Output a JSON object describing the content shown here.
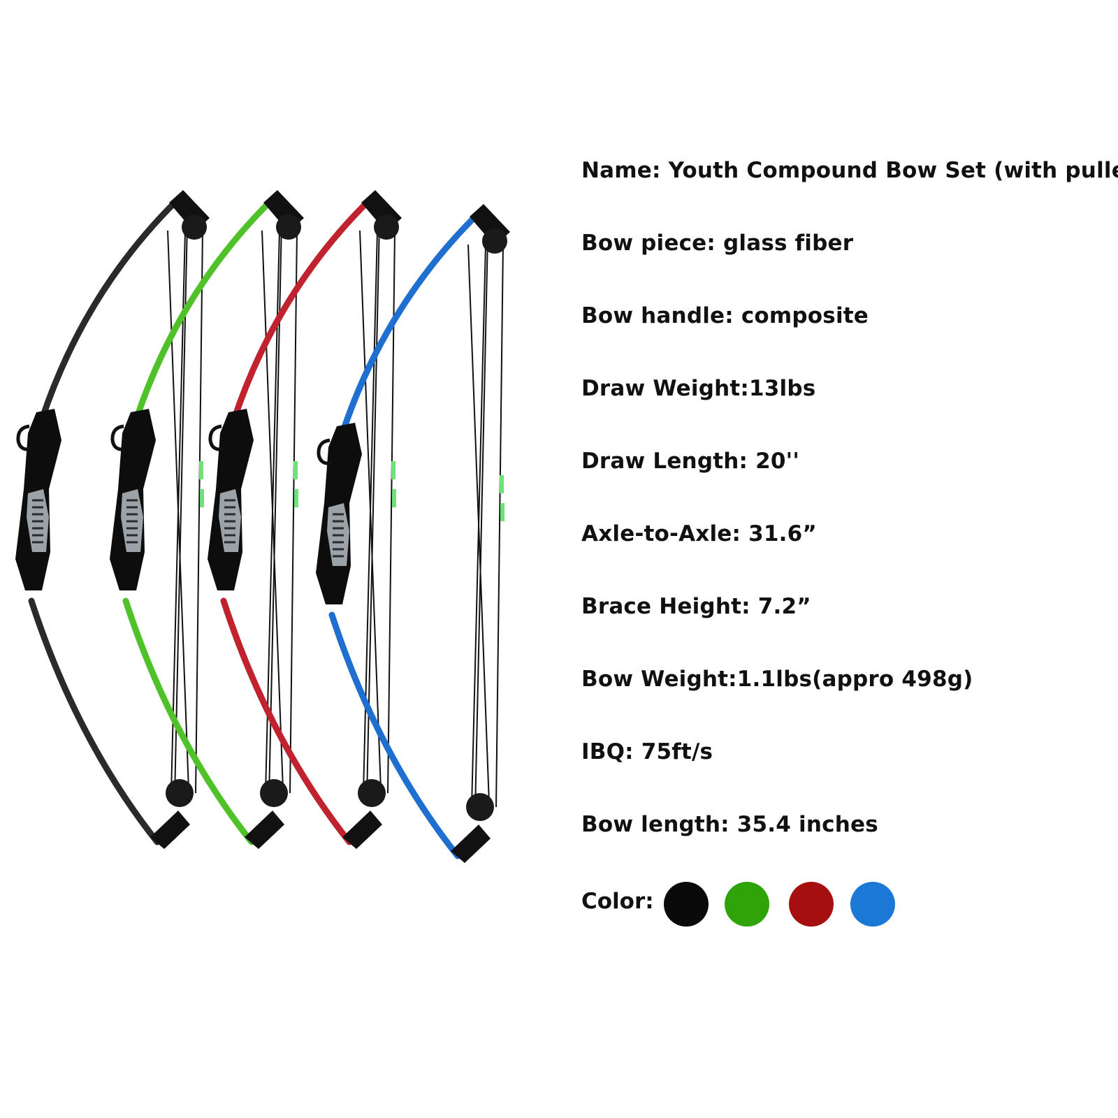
{
  "specs": [
    {
      "id": "name",
      "text": "Name: Youth Compound Bow Set (with pulley)"
    },
    {
      "id": "bow-piece",
      "text": "Bow piece: glass fiber"
    },
    {
      "id": "bow-handle",
      "text": "Bow handle: composite"
    },
    {
      "id": "draw-weight",
      "text": "Draw Weight:13lbs"
    },
    {
      "id": "draw-length",
      "text": "Draw Length: 20''"
    },
    {
      "id": "axle-to-axle",
      "text": "Axle-to-Axle: 31.6”"
    },
    {
      "id": "brace-height",
      "text": "Brace Height: 7.2”"
    },
    {
      "id": "bow-weight",
      "text": "Bow Weight:1.1lbs(appro 498g)"
    },
    {
      "id": "ibq",
      "text": "IBQ: 75ft/s"
    },
    {
      "id": "bow-length",
      "text": "Bow length: 35.4 inches"
    }
  ],
  "color_label": "Color:",
  "colors": [
    {
      "name": "black",
      "hex": "#0a0a0a"
    },
    {
      "name": "green",
      "hex": "#2fa30a"
    },
    {
      "name": "red",
      "hex": "#a50f0f"
    },
    {
      "name": "blue",
      "hex": "#1b78d6"
    }
  ],
  "bows": [
    {
      "name": "black-bow",
      "limb": "#2a2a2a"
    },
    {
      "name": "green-bow",
      "limb": "#4fc22a"
    },
    {
      "name": "red-bow",
      "limb": "#c0222e"
    },
    {
      "name": "blue-bow",
      "limb": "#1f6fd0"
    }
  ]
}
